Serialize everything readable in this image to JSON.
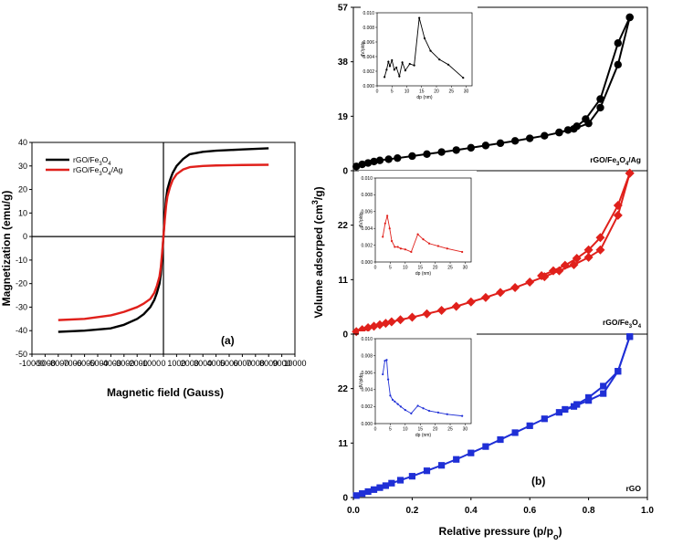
{
  "figure": {
    "panel_a_label": "(a)",
    "panel_b_label": "(b)"
  },
  "chart_data": [
    {
      "id": "a",
      "type": "line",
      "title": "",
      "xlabel": "Magnetic field (Gauss)",
      "ylabel": "Magnetization (emu/g)",
      "xlim": [
        -10000,
        10000
      ],
      "ylim": [
        -50,
        40
      ],
      "xticks": [
        -10000,
        -9000,
        -8000,
        -7000,
        -6000,
        -5000,
        -4000,
        -3000,
        -2000,
        -1000,
        0,
        1000,
        2000,
        3000,
        4000,
        5000,
        6000,
        7000,
        8000,
        9000,
        10000
      ],
      "xticklabels": [
        "-10000",
        "-9000",
        "-8000",
        "-7000",
        "-6000",
        "-5000",
        "-4000",
        "-3000",
        "-2000",
        "-1000",
        "0",
        "1000",
        "2000",
        "3000",
        "4000",
        "5000",
        "6000",
        "7000",
        "8000",
        "9000",
        "10000"
      ],
      "yticks": [
        -50,
        -40,
        -30,
        -20,
        -10,
        0,
        10,
        20,
        30,
        40
      ],
      "yticklabels": [
        "-50",
        "-40",
        "-30",
        "-20",
        "-10",
        "0",
        "10",
        "20",
        "30",
        "40"
      ],
      "legend": "top-left",
      "series": [
        {
          "name": "rGO/Fe3O4",
          "legend_prefix": "rGO/Fe",
          "legend_sub1": "3",
          "legend_mid": "O",
          "legend_sub2": "4",
          "legend_suffix": "",
          "color": "#000000",
          "x": [
            -8000,
            -6000,
            -4000,
            -3000,
            -2000,
            -1500,
            -1000,
            -700,
            -500,
            -300,
            -200,
            -100,
            0,
            100,
            200,
            300,
            500,
            700,
            1000,
            1500,
            2000,
            3000,
            4000,
            6000,
            8000
          ],
          "y": [
            -40.5,
            -40,
            -39,
            -37.5,
            -35,
            -33,
            -30,
            -27,
            -24,
            -20,
            -16,
            -9,
            0,
            9,
            16,
            20,
            24,
            27,
            30,
            33,
            35,
            36,
            36.5,
            37,
            37.5
          ]
        },
        {
          "name": "rGO/Fe3O4/Ag",
          "legend_prefix": "rGO/Fe",
          "legend_sub1": "3",
          "legend_mid": "O",
          "legend_sub2": "4",
          "legend_suffix": "/Ag",
          "color": "#e0201b",
          "x": [
            -8000,
            -6000,
            -4000,
            -3000,
            -2000,
            -1500,
            -1000,
            -700,
            -500,
            -300,
            -200,
            -100,
            0,
            100,
            200,
            300,
            500,
            700,
            1000,
            1500,
            2000,
            3000,
            4000,
            6000,
            8000
          ],
          "y": [
            -35.5,
            -35,
            -33.5,
            -32,
            -30,
            -28.5,
            -26.5,
            -24,
            -21,
            -17,
            -13,
            -7,
            0,
            7,
            13,
            17,
            21,
            24,
            26.5,
            28.5,
            29.5,
            30,
            30.2,
            30.4,
            30.5
          ]
        }
      ]
    },
    {
      "id": "b",
      "type": "line",
      "title": "",
      "xlabel": "Relative pressure (p/p",
      "xlabel_sub": "o",
      "xlabel_end": ")",
      "ylabel": "Volume adsorped (cm",
      "ylabel_sup": "3",
      "ylabel_end": "/g)",
      "xlim": [
        0.0,
        1.0
      ],
      "xticks": [
        0.0,
        0.2,
        0.4,
        0.6,
        0.8,
        1.0
      ],
      "xticklabels": [
        "0.0",
        "0.2",
        "0.4",
        "0.6",
        "0.8",
        "1.0"
      ],
      "stacked_panels": [
        {
          "name": "rGO/Fe3O4/Ag",
          "label_prefix": "rGO/Fe",
          "label_sub1": "3",
          "label_mid": "O",
          "label_sub2": "4",
          "label_suffix": "/Ag",
          "color": "#000000",
          "marker": "circle",
          "ylim": [
            0,
            57
          ],
          "yticks": [
            0,
            19,
            38,
            57
          ],
          "yticklabels": [
            "0",
            "19",
            "38",
            "57"
          ],
          "adsorption": {
            "x": [
              0.01,
              0.03,
              0.05,
              0.07,
              0.09,
              0.12,
              0.15,
              0.2,
              0.25,
              0.3,
              0.35,
              0.4,
              0.45,
              0.5,
              0.55,
              0.6,
              0.65,
              0.7,
              0.75,
              0.8,
              0.84,
              0.9,
              0.94
            ],
            "y": [
              1.5,
              2.2,
              2.7,
              3.2,
              3.6,
              4.0,
              4.4,
              5.1,
              5.8,
              6.5,
              7.2,
              8.0,
              8.8,
              9.6,
              10.4,
              11.3,
              12.2,
              13.3,
              14.6,
              16.5,
              22.0,
              37.0,
              53.5
            ]
          },
          "desorption": {
            "x": [
              0.94,
              0.9,
              0.84,
              0.79,
              0.76,
              0.73,
              0.7
            ],
            "y": [
              53.5,
              44.5,
              25.0,
              18.0,
              15.5,
              14.2,
              13.4
            ]
          },
          "inset": {
            "xlabel": "dp (nm)",
            "ylabel": "dV/pldp",
            "xlim": [
              0,
              32
            ],
            "ylim": [
              0,
              0.01
            ],
            "xticks": [
              0,
              5,
              10,
              15,
              20,
              25,
              30
            ],
            "xticklabels": [
              "0",
              "5",
              "10",
              "15",
              "20",
              "25",
              "30"
            ],
            "yticks": [
              0,
              0.002,
              0.004,
              0.006,
              0.008,
              0.01
            ],
            "yticklabels": [
              "0.000",
              "0.002",
              "0.004",
              "0.006",
              "0.008",
              "0.010"
            ],
            "x": [
              2.5,
              3.2,
              3.8,
              4.3,
              5.0,
              5.8,
              6.5,
              7.5,
              8.5,
              9.5,
              11,
              12.5,
              14.2,
              16,
              18,
              21,
              24,
              29
            ],
            "y": [
              0.0012,
              0.0022,
              0.0033,
              0.0027,
              0.0035,
              0.0022,
              0.0025,
              0.0013,
              0.0032,
              0.0021,
              0.003,
              0.0028,
              0.0093,
              0.0065,
              0.0048,
              0.0036,
              0.0029,
              0.0011
            ]
          }
        },
        {
          "name": "rGO/Fe3O4",
          "label_prefix": "rGO/Fe",
          "label_sub1": "3",
          "label_mid": "O",
          "label_sub2": "4",
          "label_suffix": "",
          "color": "#e0201b",
          "marker": "diamond",
          "ylim": [
            0,
            33
          ],
          "yticks": [
            0,
            11,
            22
          ],
          "yticklabels": [
            "0",
            "11",
            "22"
          ],
          "adsorption": {
            "x": [
              0.01,
              0.03,
              0.05,
              0.07,
              0.09,
              0.11,
              0.13,
              0.16,
              0.2,
              0.25,
              0.3,
              0.35,
              0.4,
              0.45,
              0.5,
              0.55,
              0.6,
              0.65,
              0.7,
              0.75,
              0.8,
              0.84,
              0.9,
              0.94
            ],
            "y": [
              0.5,
              0.9,
              1.3,
              1.6,
              1.9,
              2.2,
              2.5,
              2.9,
              3.4,
              4.1,
              4.8,
              5.6,
              6.5,
              7.4,
              8.4,
              9.4,
              10.5,
              11.6,
              12.8,
              14.0,
              15.5,
              17.0,
              24.0,
              32.5
            ]
          },
          "desorption": {
            "x": [
              0.94,
              0.9,
              0.84,
              0.8,
              0.76,
              0.72,
              0.68,
              0.64
            ],
            "y": [
              32.5,
              26.0,
              19.5,
              17.0,
              15.3,
              13.9,
              12.8,
              11.8
            ]
          },
          "inset": {
            "xlabel": "dp (nm)",
            "ylabel": "dV/pldp",
            "xlim": [
              0,
              32
            ],
            "ylim": [
              0,
              0.01
            ],
            "xticks": [
              0,
              5,
              10,
              15,
              20,
              25,
              30
            ],
            "xticklabels": [
              "0",
              "5",
              "10",
              "15",
              "20",
              "25",
              "30"
            ],
            "yticks": [
              0,
              0.002,
              0.004,
              0.006,
              0.008,
              0.01
            ],
            "yticklabels": [
              "0.000",
              "0.002",
              "0.004",
              "0.006",
              "0.008",
              "0.010"
            ],
            "x": [
              2.5,
              3.3,
              4.0,
              4.8,
              5.5,
              6.5,
              7.5,
              8.5,
              10,
              12,
              14.2,
              16,
              18,
              21,
              24,
              29
            ],
            "y": [
              0.003,
              0.0046,
              0.0055,
              0.004,
              0.0025,
              0.0018,
              0.0018,
              0.0016,
              0.0015,
              0.0012,
              0.0033,
              0.0027,
              0.0022,
              0.0019,
              0.0016,
              0.0012
            ]
          }
        },
        {
          "name": "rGO",
          "label_prefix": "rGO",
          "label_sub1": "",
          "label_mid": "",
          "label_sub2": "",
          "label_suffix": "",
          "color": "#1f2fd6",
          "marker": "square",
          "ylim": [
            0,
            33
          ],
          "yticks": [
            0,
            11,
            22
          ],
          "yticklabels": [
            "0",
            "11",
            "22"
          ],
          "adsorption": {
            "x": [
              0.01,
              0.03,
              0.05,
              0.07,
              0.09,
              0.11,
              0.13,
              0.16,
              0.2,
              0.25,
              0.3,
              0.35,
              0.4,
              0.45,
              0.5,
              0.55,
              0.6,
              0.65,
              0.7,
              0.75,
              0.8,
              0.85,
              0.9,
              0.94
            ],
            "y": [
              0.4,
              0.8,
              1.2,
              1.6,
              2.0,
              2.4,
              2.9,
              3.5,
              4.3,
              5.4,
              6.5,
              7.7,
              9.0,
              10.3,
              11.7,
              13.1,
              14.5,
              15.9,
              17.2,
              18.4,
              19.6,
              21.0,
              25.5,
              32.5
            ]
          },
          "desorption": {
            "x": [
              0.94,
              0.9,
              0.85,
              0.8,
              0.76,
              0.72
            ],
            "y": [
              32.5,
              25.5,
              22.5,
              20.2,
              18.8,
              17.8
            ]
          },
          "inset": {
            "xlabel": "dp (nm)",
            "ylabel": "dV/pldp",
            "xlim": [
              0,
              32
            ],
            "ylim": [
              0,
              0.01
            ],
            "xticks": [
              0,
              5,
              10,
              15,
              20,
              25,
              30
            ],
            "xticklabels": [
              "0",
              "5",
              "10",
              "15",
              "20",
              "25",
              "30"
            ],
            "yticks": [
              0,
              0.002,
              0.004,
              0.006,
              0.008,
              0.01
            ],
            "yticklabels": [
              "0.000",
              "0.002",
              "0.004",
              "0.006",
              "0.008",
              "0.010"
            ],
            "x": [
              2.5,
              3.2,
              3.8,
              4.3,
              5.0,
              5.8,
              6.5,
              7.5,
              8.5,
              10,
              12,
              14.2,
              16,
              18,
              21,
              24,
              29
            ],
            "y": [
              0.0058,
              0.0074,
              0.0075,
              0.0052,
              0.0033,
              0.0028,
              0.0026,
              0.0023,
              0.002,
              0.0016,
              0.0012,
              0.0021,
              0.0018,
              0.0015,
              0.0013,
              0.0011,
              0.0009
            ]
          }
        }
      ]
    }
  ]
}
